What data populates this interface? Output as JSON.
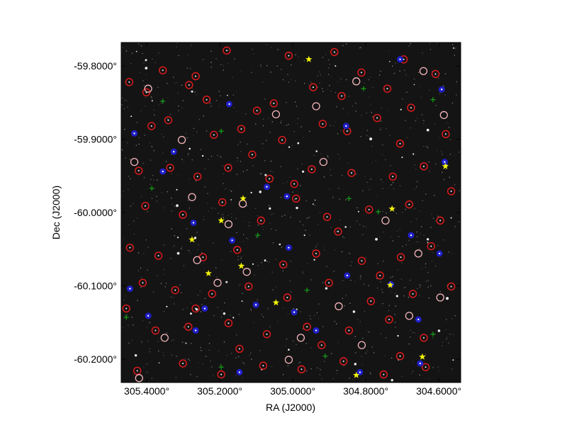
{
  "chart_data": {
    "type": "scatter",
    "title": "",
    "xlabel": "RA (J2000)",
    "ylabel": "Dec (J2000)",
    "xlim": [
      305.47,
      304.54
    ],
    "ylim": [
      -60.232,
      -59.768
    ],
    "x_inverted": true,
    "x_ticks": [
      305.4,
      305.2,
      305.0,
      304.8,
      304.6
    ],
    "x_tick_labels": [
      "305.4000°",
      "305.2000°",
      "305.0000°",
      "304.8000°",
      "304.6000°"
    ],
    "y_ticks": [
      -59.8,
      -59.9,
      -60.0,
      -60.1,
      -60.2
    ],
    "y_tick_labels": [
      "-59.8000°",
      "-59.9000°",
      "-60.0000°",
      "-60.1000°",
      "-60.2000°"
    ],
    "background": "star field image (dark)",
    "grid": false,
    "legend": "none",
    "series": [
      {
        "marker": "circle-dotted",
        "color": "#e41a1c",
        "points": [
          [
            305.448,
            -59.822
          ],
          [
            305.401,
            -59.836
          ],
          [
            305.284,
            -59.826
          ],
          [
            305.266,
            -59.814
          ],
          [
            305.098,
            -59.861
          ],
          [
            305.052,
            -59.851
          ],
          [
            304.944,
            -59.829
          ],
          [
            304.866,
            -59.841
          ],
          [
            304.812,
            -59.809
          ],
          [
            304.741,
            -59.831
          ],
          [
            304.676,
            -59.857
          ],
          [
            304.609,
            -59.811
          ],
          [
            305.387,
            -59.882
          ],
          [
            305.341,
            -59.874
          ],
          [
            305.216,
            -59.894
          ],
          [
            305.141,
            -59.886
          ],
          [
            305.029,
            -59.901
          ],
          [
            304.918,
            -59.879
          ],
          [
            304.851,
            -59.889
          ],
          [
            304.769,
            -59.871
          ],
          [
            304.706,
            -59.906
          ],
          [
            304.581,
            -59.893
          ],
          [
            305.422,
            -59.943
          ],
          [
            305.336,
            -59.939
          ],
          [
            305.261,
            -59.951
          ],
          [
            305.177,
            -59.939
          ],
          [
            305.064,
            -59.954
          ],
          [
            304.948,
            -59.941
          ],
          [
            304.839,
            -59.946
          ],
          [
            304.726,
            -59.951
          ],
          [
            304.641,
            -59.937
          ],
          [
            305.404,
            -59.991
          ],
          [
            305.301,
            -60.003
          ],
          [
            305.193,
            -59.986
          ],
          [
            305.087,
            -60.011
          ],
          [
            304.991,
            -59.981
          ],
          [
            304.906,
            -60.006
          ],
          [
            304.791,
            -59.996
          ],
          [
            304.681,
            -59.989
          ],
          [
            304.596,
            -60.011
          ],
          [
            305.446,
            -60.048
          ],
          [
            305.368,
            -60.059
          ],
          [
            305.246,
            -60.061
          ],
          [
            305.152,
            -60.051
          ],
          [
            305.026,
            -60.071
          ],
          [
            304.936,
            -60.056
          ],
          [
            304.811,
            -60.066
          ],
          [
            304.704,
            -60.061
          ],
          [
            304.621,
            -60.046
          ],
          [
            305.411,
            -60.096
          ],
          [
            305.322,
            -60.106
          ],
          [
            305.221,
            -60.111
          ],
          [
            305.121,
            -60.101
          ],
          [
            305.015,
            -60.116
          ],
          [
            304.901,
            -60.096
          ],
          [
            304.786,
            -60.121
          ],
          [
            304.671,
            -60.111
          ],
          [
            304.566,
            -60.101
          ],
          [
            305.376,
            -60.161
          ],
          [
            305.286,
            -60.156
          ],
          [
            305.176,
            -60.151
          ],
          [
            305.071,
            -60.166
          ],
          [
            304.961,
            -60.156
          ],
          [
            304.846,
            -60.161
          ],
          [
            304.736,
            -60.146
          ],
          [
            304.641,
            -60.171
          ],
          [
            305.426,
            -60.216
          ],
          [
            305.301,
            -60.206
          ],
          [
            305.196,
            -60.221
          ],
          [
            305.081,
            -60.209
          ],
          [
            304.976,
            -60.214
          ],
          [
            304.861,
            -60.203
          ],
          [
            304.751,
            -60.221
          ],
          [
            304.636,
            -60.211
          ],
          [
            305.356,
            -59.806
          ],
          [
            305.181,
            -59.779
          ],
          [
            305.011,
            -59.786
          ],
          [
            304.886,
            -59.781
          ],
          [
            304.696,
            -59.791
          ],
          [
            305.236,
            -59.846
          ],
          [
            305.111,
            -59.921
          ],
          [
            304.996,
            -59.961
          ],
          [
            304.876,
            -60.026
          ],
          [
            304.761,
            -60.086
          ],
          [
            305.266,
            -60.131
          ],
          [
            305.146,
            -60.186
          ],
          [
            304.921,
            -60.181
          ],
          [
            304.706,
            -60.196
          ],
          [
            305.456,
            -60.131
          ],
          [
            304.566,
            -59.971
          ]
        ]
      },
      {
        "marker": "circle-open",
        "color": "#f4b6bc",
        "points": [
          [
            305.396,
            -59.831
          ],
          [
            305.304,
            -59.901
          ],
          [
            305.276,
            -59.979
          ],
          [
            305.137,
            -59.988
          ],
          [
            305.046,
            -59.866
          ],
          [
            304.936,
            -59.855
          ],
          [
            304.826,
            -59.821
          ],
          [
            304.642,
            -59.807
          ],
          [
            304.586,
            -59.867
          ],
          [
            305.434,
            -59.931
          ],
          [
            305.262,
            -60.065
          ],
          [
            305.126,
            -60.081
          ],
          [
            304.978,
            -60.171
          ],
          [
            304.874,
            -60.128
          ],
          [
            304.746,
            -60.011
          ],
          [
            304.656,
            -60.056
          ],
          [
            304.596,
            -60.116
          ],
          [
            305.351,
            -60.171
          ],
          [
            305.206,
            -60.096
          ],
          [
            305.011,
            -60.201
          ],
          [
            304.811,
            -60.181
          ],
          [
            304.681,
            -60.141
          ],
          [
            305.421,
            -60.226
          ],
          [
            305.176,
            -60.016
          ],
          [
            304.916,
            -59.931
          ]
        ]
      },
      {
        "marker": "circle-filled",
        "color": "#1f1fc8",
        "points": [
          [
            305.434,
            -59.892
          ],
          [
            305.356,
            -59.944
          ],
          [
            305.326,
            -59.917
          ],
          [
            305.174,
            -59.852
          ],
          [
            305.071,
            -59.965
          ],
          [
            304.854,
            -59.882
          ],
          [
            304.706,
            -59.791
          ],
          [
            304.592,
            -59.832
          ],
          [
            304.584,
            -59.931
          ],
          [
            305.272,
            -60.014
          ],
          [
            305.166,
            -60.038
          ],
          [
            305.011,
            -60.048
          ],
          [
            304.851,
            -60.086
          ],
          [
            304.676,
            -60.031
          ],
          [
            304.598,
            -60.056
          ],
          [
            305.446,
            -60.104
          ],
          [
            305.241,
            -60.131
          ],
          [
            305.101,
            -60.126
          ],
          [
            304.996,
            -60.136
          ],
          [
            304.936,
            -60.161
          ],
          [
            304.731,
            -60.098
          ],
          [
            304.656,
            -60.146
          ],
          [
            305.396,
            -60.141
          ],
          [
            305.266,
            -60.161
          ],
          [
            305.146,
            -60.218
          ],
          [
            304.816,
            -60.218
          ],
          [
            304.651,
            -60.206
          ],
          [
            305.016,
            -59.978
          ]
        ]
      },
      {
        "marker": "star",
        "color": "#f2f20a",
        "points": [
          [
            304.956,
            -59.791
          ],
          [
            305.136,
            -59.981
          ],
          [
            305.196,
            -60.011
          ],
          [
            305.276,
            -60.037
          ],
          [
            305.231,
            -60.083
          ],
          [
            305.141,
            -60.073
          ],
          [
            305.046,
            -60.123
          ],
          [
            304.728,
            -59.995
          ],
          [
            304.733,
            -60.099
          ],
          [
            304.645,
            -60.197
          ],
          [
            304.582,
            -59.937
          ],
          [
            304.826,
            -60.222
          ]
        ]
      },
      {
        "marker": "plus",
        "color": "#169a16",
        "points": [
          [
            305.356,
            -59.848
          ],
          [
            305.196,
            -59.889
          ],
          [
            304.806,
            -59.831
          ],
          [
            304.616,
            -59.846
          ],
          [
            305.386,
            -59.967
          ],
          [
            304.846,
            -59.981
          ],
          [
            304.766,
            -59.999
          ],
          [
            305.456,
            -60.143
          ],
          [
            305.096,
            -60.031
          ],
          [
            304.961,
            -60.106
          ],
          [
            304.616,
            -60.166
          ],
          [
            305.196,
            -60.211
          ],
          [
            304.911,
            -60.196
          ]
        ]
      }
    ]
  }
}
